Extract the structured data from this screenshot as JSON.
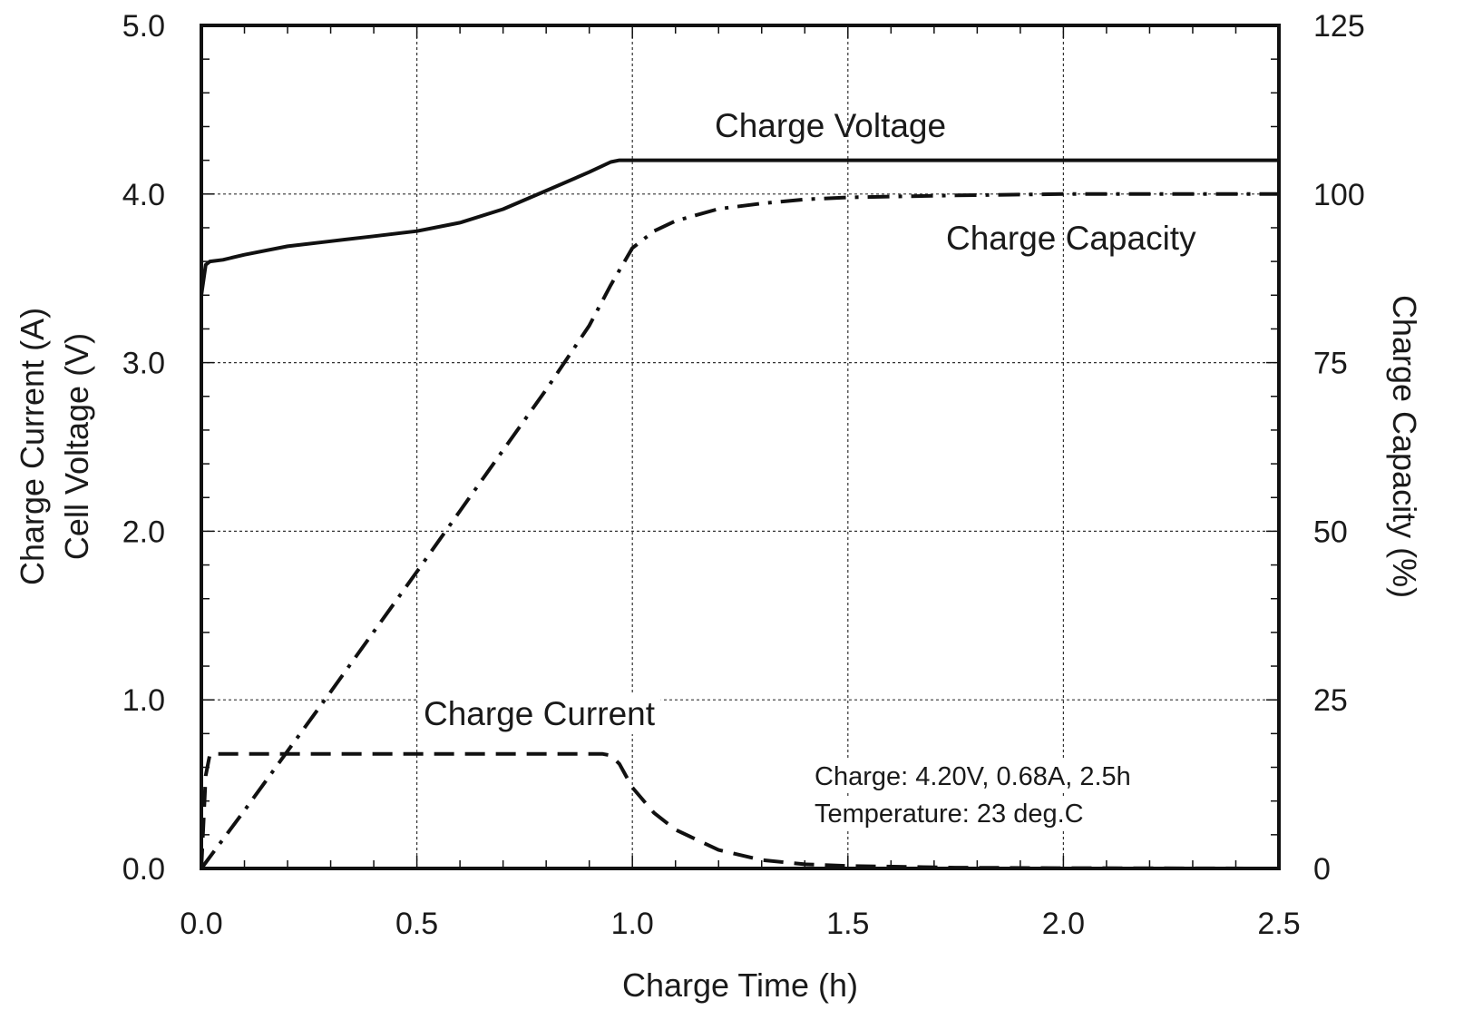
{
  "chart_data": {
    "type": "line",
    "xlabel": "Charge Time (h)",
    "ylabel_left": [
      "Charge Current (A)",
      "Cell Voltage (V)"
    ],
    "ylabel_right": "Charge Capacity (%)",
    "xlim": [
      0,
      2.5
    ],
    "ylim_left": [
      0,
      5
    ],
    "ylim_right": [
      0,
      125
    ],
    "x_ticks": [
      "0.0",
      "0.5",
      "1.0",
      "1.5",
      "2.0",
      "2.5"
    ],
    "y_left_ticks": [
      "0.0",
      "1.0",
      "2.0",
      "3.0",
      "4.0",
      "5.0"
    ],
    "y_right_ticks": [
      "0",
      "25",
      "50",
      "75",
      "100",
      "125"
    ],
    "grid": true,
    "series": [
      {
        "name": "Charge Voltage",
        "axis": "left",
        "style": "solid",
        "x": [
          0,
          0.01,
          0.02,
          0.05,
          0.1,
          0.2,
          0.3,
          0.4,
          0.5,
          0.6,
          0.7,
          0.8,
          0.9,
          0.95,
          0.97,
          1.0,
          1.25,
          1.5,
          2.0,
          2.5
        ],
        "y": [
          3.4,
          3.58,
          3.6,
          3.61,
          3.64,
          3.69,
          3.72,
          3.75,
          3.78,
          3.83,
          3.91,
          4.02,
          4.13,
          4.19,
          4.2,
          4.2,
          4.2,
          4.2,
          4.2,
          4.2
        ]
      },
      {
        "name": "Charge Capacity",
        "axis": "right",
        "style": "dash-dot",
        "x": [
          0,
          0.1,
          0.2,
          0.3,
          0.4,
          0.5,
          0.6,
          0.7,
          0.8,
          0.9,
          0.95,
          1.0,
          1.05,
          1.1,
          1.2,
          1.3,
          1.4,
          1.5,
          1.75,
          2.0,
          2.5
        ],
        "y": [
          0,
          8.6,
          17.4,
          26.2,
          35.1,
          44,
          53,
          62,
          71,
          80.5,
          86.5,
          92,
          94.5,
          96,
          97.8,
          98.6,
          99.2,
          99.5,
          99.8,
          100,
          100
        ]
      },
      {
        "name": "Charge Current",
        "axis": "left",
        "style": "dashed",
        "x": [
          0,
          0.01,
          0.02,
          0.5,
          0.93,
          0.95,
          0.97,
          1.0,
          1.05,
          1.1,
          1.2,
          1.3,
          1.4,
          1.5,
          1.75,
          2.0,
          2.5
        ],
        "y": [
          0,
          0.55,
          0.68,
          0.68,
          0.68,
          0.67,
          0.62,
          0.48,
          0.33,
          0.23,
          0.11,
          0.05,
          0.025,
          0.015,
          0.005,
          0.002,
          0
        ]
      }
    ],
    "annotations": {
      "charge_voltage": "Charge Voltage",
      "charge_capacity": "Charge Capacity",
      "charge_current": "Charge Current",
      "note_line1": "Charge: 4.20V, 0.68A, 2.5h",
      "note_line2": "Temperature: 23 deg.C"
    }
  }
}
